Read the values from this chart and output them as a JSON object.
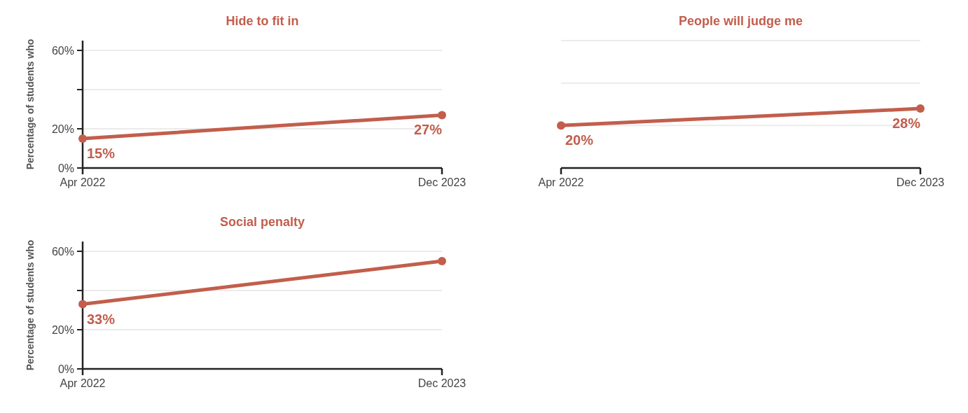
{
  "chart_data": [
    {
      "type": "line",
      "title": "Hide to fit in",
      "ylabel": "Percentage of students who",
      "x": [
        "2022-04",
        "2023-12"
      ],
      "xlim": [
        "2022-04",
        "2023-12"
      ],
      "xticks": [
        {
          "value": "2022-04",
          "label": "Apr 2022"
        },
        {
          "value": "2023-12",
          "label": "Dec 2023"
        }
      ],
      "ylim": [
        0,
        65
      ],
      "yticks": [
        {
          "value": 0,
          "label": "0%"
        },
        {
          "value": 20,
          "label": "20%"
        },
        {
          "value": 40,
          "label": null
        },
        {
          "value": 60,
          "label": "60%"
        }
      ],
      "grid": "y",
      "marker": "circle",
      "series": [
        {
          "color": "#c25e4c",
          "values": [
            15,
            27
          ],
          "value_labels": [
            "15%",
            "27%"
          ]
        }
      ]
    },
    {
      "type": "line",
      "title": "People will judge me",
      "x": [
        "2022-04",
        "2023-12"
      ],
      "xlim": [
        "2022-04",
        "2023-12"
      ],
      "xticks": [
        {
          "value": "2022-04",
          "label": "Apr 2022"
        },
        {
          "value": "2023-12",
          "label": "Dec 2023"
        }
      ],
      "ylim": [
        0,
        60
      ],
      "yticks": [
        {
          "value": 0,
          "label": null
        },
        {
          "value": 20,
          "label": null
        },
        {
          "value": 40,
          "label": null
        },
        {
          "value": 60,
          "label": null
        }
      ],
      "grid": "y",
      "marker": "circle",
      "tick_labels": "x",
      "series": [
        {
          "color": "#c25e4c",
          "values": [
            20,
            28
          ],
          "value_labels": [
            "20%",
            "28%"
          ]
        }
      ]
    },
    {
      "type": "line",
      "title": "Social penalty",
      "ylabel": "Percentage of students who",
      "x": [
        "2022-04",
        "2023-12"
      ],
      "xlim": [
        "2022-04",
        "2023-12"
      ],
      "xticks": [
        {
          "value": "2022-04",
          "label": "Apr 2022"
        },
        {
          "value": "2023-12",
          "label": "Dec 2023"
        }
      ],
      "ylim": [
        0,
        65
      ],
      "yticks": [
        {
          "value": 0,
          "label": "0%"
        },
        {
          "value": 20,
          "label": "20%"
        },
        {
          "value": 40,
          "label": null
        },
        {
          "value": 60,
          "label": "60%"
        }
      ],
      "grid": "y",
      "marker": "circle",
      "series": [
        {
          "color": "#c25e4c",
          "values": [
            33,
            55
          ],
          "value_labels": [
            "33%",
            null
          ]
        }
      ]
    }
  ]
}
